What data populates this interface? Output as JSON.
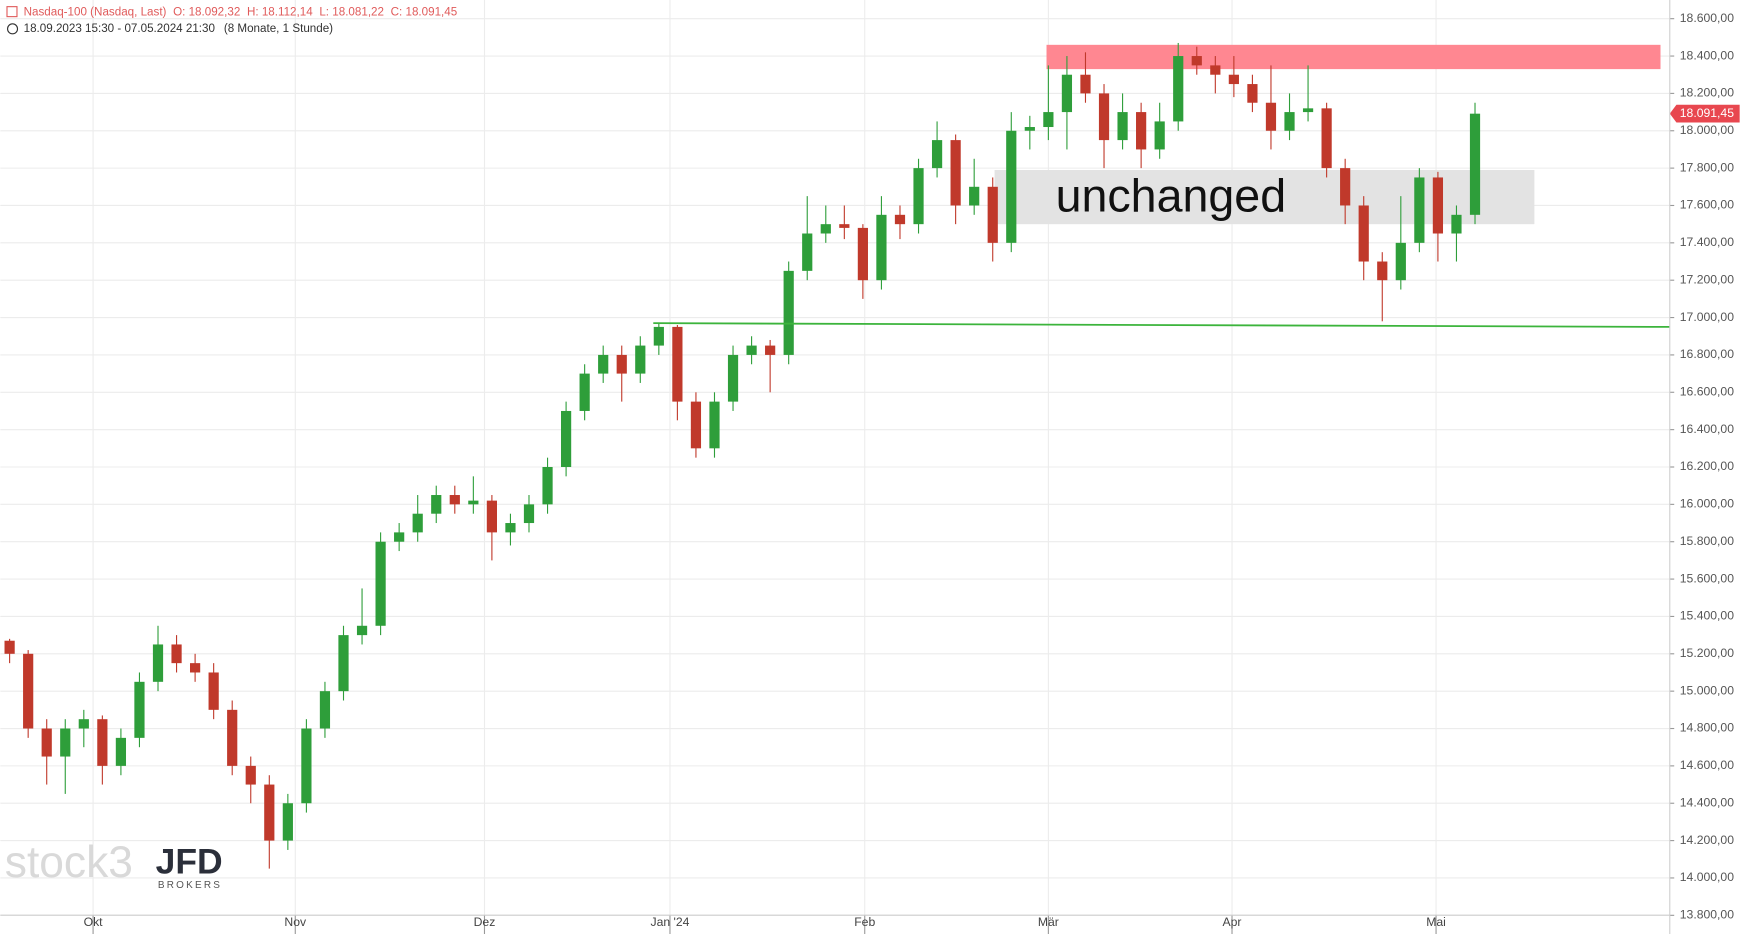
{
  "chart_data": {
    "type": "candlestick",
    "title": "Nasdaq-100 (Nasdaq, Last)",
    "ohlc_header": [
      "O: 18.092,32",
      "H: 18.112,14",
      "L: 18.081,22",
      "C: 18.091,45"
    ],
    "subtitle": "18.09.2023 15:30 - 07.05.2024 21:30",
    "period_note": "(8 Monate, 1 Stunde)",
    "watermark": "stock3",
    "broker": "JFD",
    "broker_sub": "BROKERS",
    "annotation_text": "unchanged",
    "up_color": "#2e9e3a",
    "down_color": "#c0392b",
    "grid": true,
    "xlim": [
      0,
      90
    ],
    "xticks": [
      {
        "value": 5,
        "label": "Okt"
      },
      {
        "value": 15.9,
        "label": "Nov"
      },
      {
        "value": 26.1,
        "label": "Dez"
      },
      {
        "value": 36.1,
        "label": "Jan '24"
      },
      {
        "value": 46.6,
        "label": "Feb"
      },
      {
        "value": 56.5,
        "label": "Mär"
      },
      {
        "value": 66.4,
        "label": "Apr"
      },
      {
        "value": 77.4,
        "label": "Mai"
      }
    ],
    "ylim": [
      13700,
      18700
    ],
    "yticks": [
      {
        "value": 13800,
        "label": "13.800,00"
      },
      {
        "value": 14000,
        "label": "14.000,00"
      },
      {
        "value": 14200,
        "label": "14.200,00"
      },
      {
        "value": 14400,
        "label": "14.400,00"
      },
      {
        "value": 14600,
        "label": "14.600,00"
      },
      {
        "value": 14800,
        "label": "14.800,00"
      },
      {
        "value": 15000,
        "label": "15.000,00"
      },
      {
        "value": 15200,
        "label": "15.200,00"
      },
      {
        "value": 15400,
        "label": "15.400,00"
      },
      {
        "value": 15600,
        "label": "15.600,00"
      },
      {
        "value": 15800,
        "label": "15.800,00"
      },
      {
        "value": 16000,
        "label": "16.000,00"
      },
      {
        "value": 16200,
        "label": "16.200,00"
      },
      {
        "value": 16400,
        "label": "16.400,00"
      },
      {
        "value": 16600,
        "label": "16.600,00"
      },
      {
        "value": 16800,
        "label": "16.800,00"
      },
      {
        "value": 17000,
        "label": "17.000,00"
      },
      {
        "value": 17200,
        "label": "17.200,00"
      },
      {
        "value": 17400,
        "label": "17.400,00"
      },
      {
        "value": 17600,
        "label": "17.600,00"
      },
      {
        "value": 17800,
        "label": "17.800,00"
      },
      {
        "value": 18000,
        "label": "18.000,00"
      },
      {
        "value": 18200,
        "label": "18.200,00"
      },
      {
        "value": 18400,
        "label": "18.400,00"
      },
      {
        "value": 18600,
        "label": "18.600,00"
      }
    ],
    "x": [
      0.5,
      1.5,
      2.5,
      3.5,
      4.5,
      5.5,
      6.5,
      7.5,
      8.5,
      9.5,
      10.5,
      11.5,
      12.5,
      13.5,
      14.5,
      15.5,
      16.5,
      17.5,
      18.5,
      19.5,
      20.5,
      21.5,
      22.5,
      23.5,
      24.5,
      25.5,
      26.5,
      27.5,
      28.5,
      29.5,
      30.5,
      31.5,
      32.5,
      33.5,
      34.5,
      35.5,
      36.5,
      37.5,
      38.5,
      39.5,
      40.5,
      41.5,
      42.5,
      43.5,
      44.5,
      45.5,
      46.5,
      47.5,
      48.5,
      49.5,
      50.5,
      51.5,
      52.5,
      53.5,
      54.5,
      55.5,
      56.5,
      57.5,
      58.5,
      59.5,
      60.5,
      61.5,
      62.5,
      63.5,
      64.5,
      65.5,
      66.5,
      67.5,
      68.5,
      69.5,
      70.5,
      71.5,
      72.5,
      73.5,
      74.5,
      75.5,
      76.5,
      77.5,
      78.5,
      79.5
    ],
    "open": [
      15270,
      15200,
      14800,
      14650,
      14800,
      14850,
      14600,
      14750,
      15050,
      15250,
      15150,
      15100,
      14900,
      14600,
      14500,
      14200,
      14400,
      14800,
      15000,
      15300,
      15350,
      15800,
      15850,
      15950,
      16050,
      16000,
      16020,
      15850,
      15900,
      16000,
      16200,
      16500,
      16700,
      16800,
      16700,
      16850,
      16950,
      16550,
      16300,
      16550,
      16800,
      16850,
      16800,
      17250,
      17450,
      17500,
      17480,
      17200,
      17550,
      17500,
      17800,
      17950,
      17600,
      17700,
      17400,
      18000,
      18020,
      18100,
      18300,
      18200,
      17950,
      18100,
      17900,
      18050,
      18400,
      18350,
      18300,
      18250,
      18150,
      18000,
      18100,
      18120,
      17800,
      17600,
      17300,
      17200,
      17400,
      17750,
      17450,
      17550
    ],
    "high": [
      15280,
      15220,
      14850,
      14850,
      14900,
      14870,
      14800,
      15100,
      15350,
      15300,
      15200,
      15150,
      14950,
      14650,
      14550,
      14450,
      14850,
      15050,
      15350,
      15550,
      15850,
      15900,
      16050,
      16100,
      16100,
      16150,
      16050,
      15950,
      16050,
      16250,
      16550,
      16750,
      16850,
      16850,
      16900,
      16970,
      16960,
      16600,
      16600,
      16850,
      16900,
      16880,
      17300,
      17650,
      17600,
      17600,
      17500,
      17650,
      17600,
      17850,
      18050,
      17980,
      17850,
      17750,
      18100,
      18080,
      18350,
      18400,
      18420,
      18250,
      18200,
      18150,
      18150,
      18470,
      18450,
      18400,
      18400,
      18300,
      18350,
      18200,
      18350,
      18150,
      17850,
      17650,
      17350,
      17650,
      17800,
      17780,
      17600,
      18150
    ],
    "low": [
      15150,
      14750,
      14500,
      14450,
      14700,
      14500,
      14550,
      14700,
      15000,
      15100,
      15050,
      14850,
      14550,
      14400,
      14050,
      14150,
      14350,
      14750,
      14950,
      15250,
      15300,
      15750,
      15800,
      15900,
      15950,
      15950,
      15700,
      15780,
      15850,
      15950,
      16150,
      16450,
      16650,
      16550,
      16650,
      16800,
      16450,
      16250,
      16250,
      16500,
      16750,
      16600,
      16750,
      17200,
      17400,
      17420,
      17100,
      17150,
      17420,
      17450,
      17750,
      17500,
      17550,
      17300,
      17350,
      17900,
      17950,
      17900,
      18150,
      17800,
      17900,
      17800,
      17850,
      18000,
      18300,
      18200,
      18180,
      18100,
      17900,
      17950,
      18050,
      17750,
      17500,
      17200,
      16980,
      17150,
      17350,
      17300,
      17300,
      17500
    ],
    "close": [
      15200,
      14800,
      14650,
      14800,
      14850,
      14600,
      14750,
      15050,
      15250,
      15150,
      15100,
      14900,
      14600,
      14500,
      14200,
      14400,
      14800,
      15000,
      15300,
      15350,
      15800,
      15850,
      15950,
      16050,
      16000,
      16020,
      15850,
      15900,
      16000,
      16200,
      16500,
      16700,
      16800,
      16700,
      16850,
      16950,
      16550,
      16300,
      16550,
      16800,
      16850,
      16800,
      17250,
      17450,
      17500,
      17480,
      17200,
      17550,
      17500,
      17800,
      17950,
      17600,
      17700,
      17400,
      18000,
      18020,
      18100,
      18300,
      18200,
      17950,
      18100,
      17900,
      18050,
      18400,
      18350,
      18300,
      18250,
      18150,
      18000,
      18100,
      18120,
      17800,
      17600,
      17300,
      17200,
      17400,
      17750,
      17450,
      17550,
      18091.45
    ],
    "last_price": {
      "value": 18091.45,
      "label": "18.091,45"
    },
    "resistance_zone": {
      "x": [
        56.4,
        89.5
      ],
      "y": [
        18330,
        18460
      ],
      "color": "#ff8791"
    },
    "annotation_box": {
      "x": [
        53.6,
        82.7
      ],
      "y": [
        17500,
        17790
      ],
      "color": "#e3e3e3"
    },
    "support_line": {
      "x": [
        35.2,
        90
      ],
      "y": [
        16970,
        16950
      ],
      "color": "#3cb43c"
    }
  }
}
